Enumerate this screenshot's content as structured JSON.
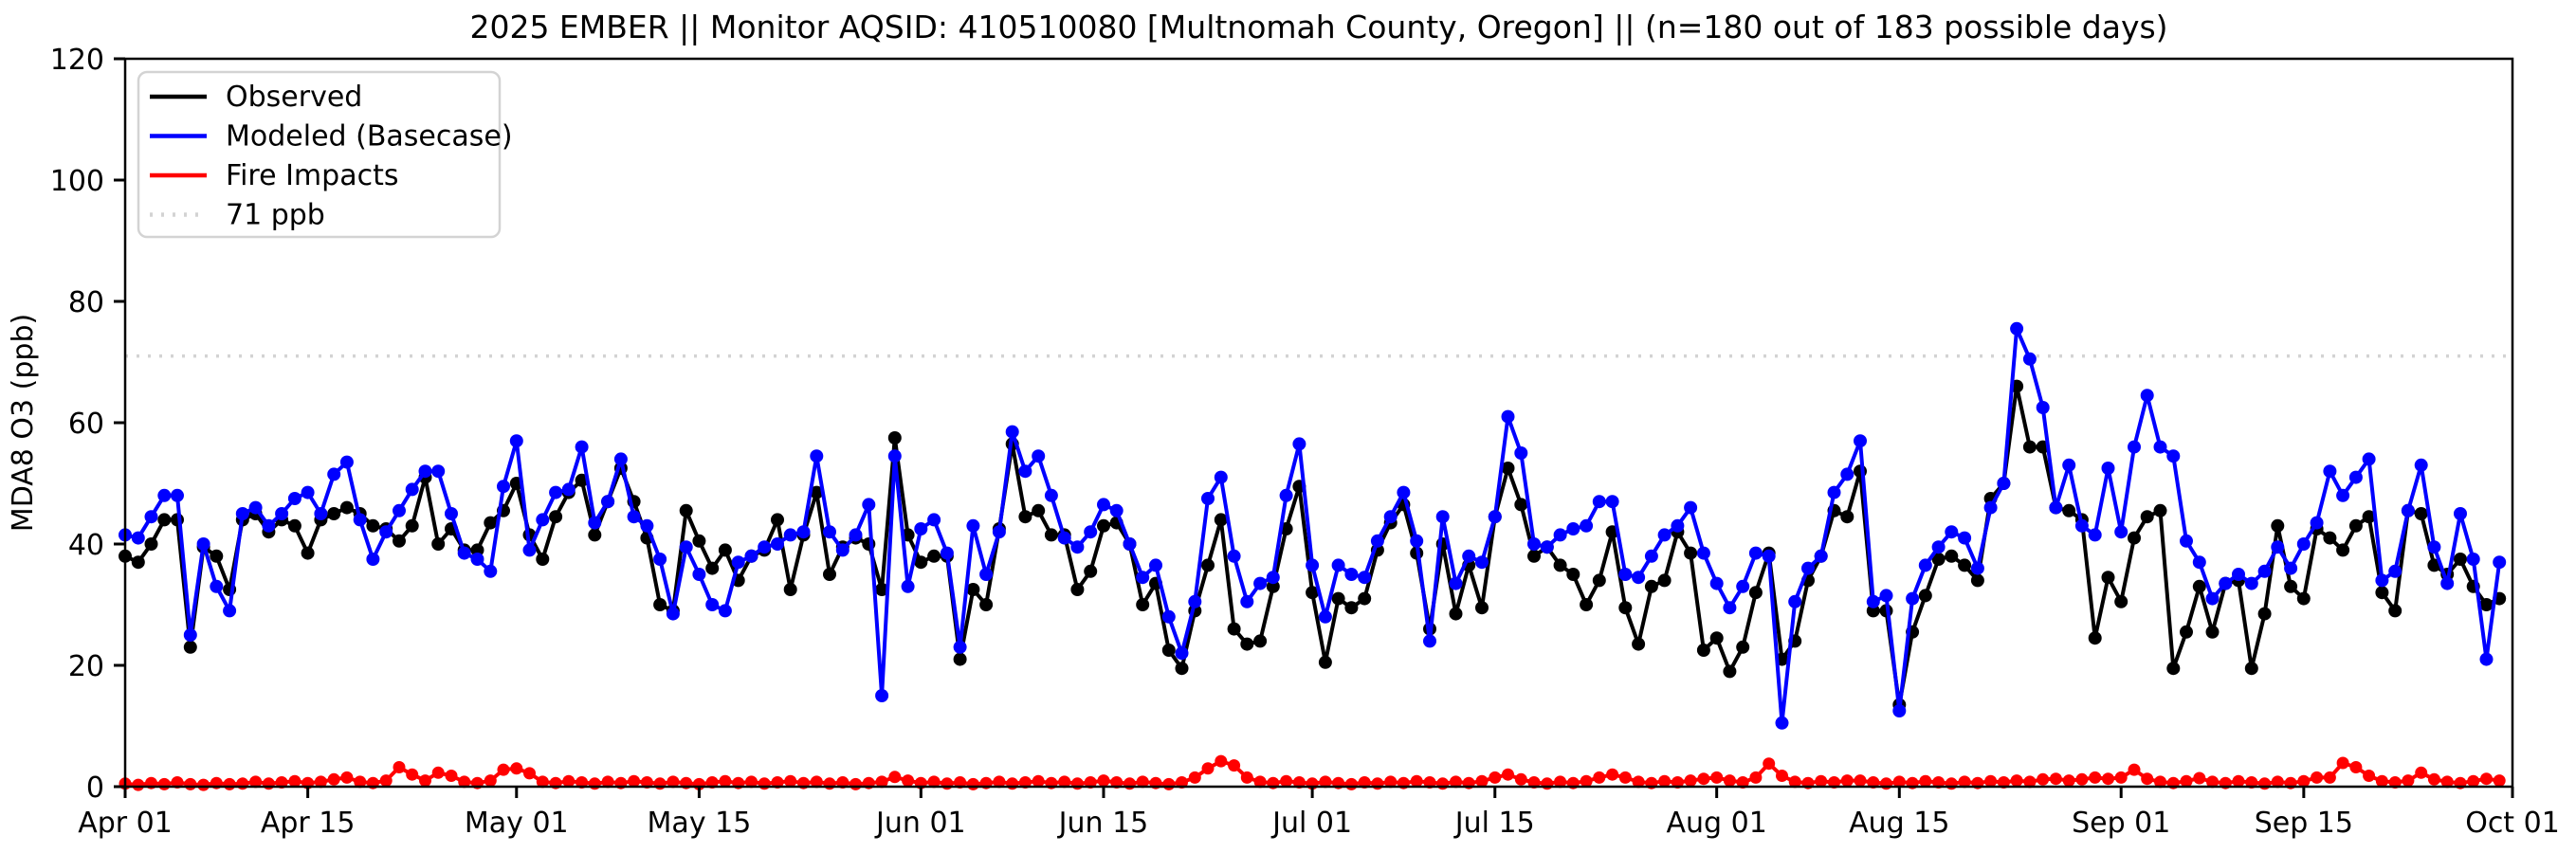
{
  "figure": {
    "background": "#ffffff",
    "accent_black": "#000000",
    "accent_blue": "#0000ff",
    "accent_red": "#ff0000",
    "threshold_gray": "#d3d3d3"
  },
  "chart_data": {
    "type": "line",
    "title": "2025 EMBER || Monitor AQSID: 410510080 [Multnomah County, Oregon] || (n=180 out of 183 possible days)",
    "xlabel": "",
    "ylabel": "MDA8 O3 (ppb)",
    "ylim": [
      0,
      120
    ],
    "y_ticks": [
      0,
      20,
      40,
      60,
      80,
      100,
      120
    ],
    "x_axis_note": "daily values, day 0 = Apr 01, day 182 = Sep 30, axis extends to Oct 01 (day 183)",
    "x_range_days": 183,
    "x_tick_days": [
      0,
      14,
      30,
      44,
      61,
      75,
      91,
      105,
      122,
      136,
      153,
      167,
      183
    ],
    "x_tick_labels": [
      "Apr 01",
      "Apr 15",
      "May 01",
      "May 15",
      "Jun 01",
      "Jun 15",
      "Jul 01",
      "Jul 15",
      "Aug 01",
      "Aug 15",
      "Sep 01",
      "Sep 15",
      "Oct 01"
    ],
    "grid": false,
    "legend_position": "upper left",
    "threshold": {
      "value": 71,
      "label": "71 ppb",
      "color": "#d3d3d3",
      "style": "dotted"
    },
    "series": [
      {
        "name": "Observed",
        "color": "#000000",
        "style": "solid",
        "marker": "circle",
        "values": [
          38,
          37,
          40,
          44,
          44,
          23,
          39.5,
          38,
          32.5,
          44,
          45,
          42,
          44,
          43,
          38.5,
          44,
          45,
          46,
          45,
          43,
          42.5,
          40.5,
          43,
          51,
          40,
          42.5,
          39,
          39,
          43.5,
          45.5,
          50,
          41.5,
          37.5,
          44.5,
          48.5,
          50.5,
          41.5,
          47,
          52.5,
          47,
          41,
          30,
          29,
          45.5,
          40.5,
          36,
          39,
          34,
          38,
          39,
          44,
          32.5,
          41.5,
          48.5,
          35,
          39.5,
          41,
          40,
          32.5,
          57.5,
          41.5,
          37,
          38,
          38,
          21,
          32.5,
          30,
          42.5,
          56.5,
          44.5,
          45.5,
          41.5,
          41.5,
          32.5,
          35.5,
          43,
          43.5,
          40,
          30,
          33.5,
          22.5,
          19.5,
          29,
          36.5,
          44,
          26,
          23.5,
          24,
          33,
          42.5,
          49.5,
          32,
          20.5,
          31,
          29.5,
          31,
          39,
          43.5,
          46.5,
          38.5,
          26,
          40,
          28.5,
          36.5,
          29.5,
          44.5,
          52.5,
          46.5,
          38,
          39.5,
          36.5,
          35,
          30,
          34,
          42,
          29.5,
          23.5,
          33,
          34,
          42,
          38.5,
          22.5,
          24.5,
          19,
          23,
          32,
          38.5,
          21,
          24,
          34,
          38,
          45.5,
          44.5,
          52,
          29,
          29,
          13.5,
          25.5,
          31.5,
          37.5,
          38,
          36.5,
          34,
          47.5,
          50,
          66,
          56,
          56,
          46,
          45.5,
          44,
          24.5,
          34.5,
          30.5,
          41,
          44.5,
          45.5,
          19.5,
          25.5,
          33,
          25.5,
          33.5,
          34,
          19.5,
          28.5,
          43,
          33,
          31,
          42.5,
          41,
          39,
          43,
          44.5,
          32,
          29,
          45.5,
          45,
          36.5,
          35,
          37.5,
          33,
          30,
          31
        ]
      },
      {
        "name": "Modeled (Basecase)",
        "color": "#0000ff",
        "style": "solid",
        "marker": "circle",
        "values": [
          41.5,
          41,
          44.5,
          48,
          48,
          25,
          40,
          33,
          29,
          45,
          46,
          43,
          45,
          47.5,
          48.5,
          45,
          51.5,
          53.5,
          44,
          37.5,
          42,
          45.5,
          49,
          52,
          52,
          45,
          38.5,
          37.5,
          35.5,
          49.5,
          57,
          39,
          44,
          48.5,
          49,
          56,
          43.5,
          47,
          54,
          44.5,
          43,
          37.5,
          28.5,
          39.5,
          35,
          30,
          29,
          37,
          38,
          39.5,
          40,
          41.5,
          42,
          54.5,
          42,
          39,
          41.5,
          46.5,
          15,
          54.5,
          33,
          42.5,
          44,
          38.5,
          23,
          43,
          35,
          42,
          58.5,
          52,
          54.5,
          48,
          41,
          39.5,
          42,
          46.5,
          45.5,
          40,
          34.5,
          36.5,
          28,
          22,
          30.5,
          47.5,
          51,
          38,
          30.5,
          33.5,
          34.5,
          48,
          56.5,
          36.5,
          28,
          36.5,
          35,
          34.5,
          40.5,
          44.5,
          48.5,
          40.5,
          24,
          44.5,
          33.5,
          38,
          37,
          44.5,
          61,
          55,
          40,
          39.5,
          41.5,
          42.5,
          43,
          47,
          47,
          35,
          34.5,
          38,
          41.5,
          43,
          46,
          38.5,
          33.5,
          29.5,
          33,
          38.5,
          38,
          10.5,
          30.5,
          36,
          38,
          48.5,
          51.5,
          57,
          30.5,
          31.5,
          12.5,
          31,
          36.5,
          39.5,
          42,
          41,
          36,
          46,
          50,
          75.5,
          70.5,
          62.5,
          46,
          53,
          43,
          41.5,
          52.5,
          42,
          56,
          64.5,
          56,
          54.5,
          40.5,
          37,
          31,
          33.5,
          35,
          33.5,
          35.5,
          39.5,
          36,
          40,
          43.5,
          52,
          48,
          51,
          54,
          34,
          35.5,
          45.5,
          53,
          39.5,
          33.5,
          45,
          37.5,
          21,
          37
        ]
      },
      {
        "name": "Fire Impacts",
        "color": "#ff0000",
        "style": "solid",
        "marker": "circle",
        "values": [
          0.5,
          0.3,
          0.6,
          0.4,
          0.7,
          0.4,
          0.3,
          0.6,
          0.4,
          0.5,
          0.8,
          0.5,
          0.7,
          0.9,
          0.6,
          0.8,
          1.2,
          1.5,
          0.8,
          0.6,
          1.0,
          3.2,
          2.0,
          1.0,
          2.3,
          1.8,
          0.8,
          0.6,
          1.0,
          2.8,
          3.0,
          2.2,
          0.8,
          0.6,
          0.9,
          0.7,
          0.5,
          0.8,
          0.6,
          0.9,
          0.7,
          0.5,
          0.8,
          0.6,
          0.4,
          0.7,
          0.9,
          0.6,
          0.8,
          0.5,
          0.7,
          0.9,
          0.6,
          0.8,
          0.5,
          0.7,
          0.4,
          0.6,
          0.8,
          1.6,
          1.0,
          0.6,
          0.8,
          0.5,
          0.7,
          0.4,
          0.6,
          0.8,
          0.5,
          0.7,
          0.9,
          0.6,
          0.8,
          0.5,
          0.7,
          1.0,
          0.7,
          0.5,
          0.8,
          0.6,
          0.4,
          0.7,
          1.5,
          3.0,
          4.2,
          3.5,
          1.5,
          0.8,
          0.6,
          0.9,
          0.7,
          0.5,
          0.8,
          0.6,
          0.4,
          0.7,
          0.5,
          0.8,
          0.6,
          0.9,
          0.7,
          0.5,
          0.8,
          0.6,
          0.9,
          1.5,
          2.0,
          1.2,
          0.7,
          0.5,
          0.8,
          0.6,
          0.9,
          1.5,
          2.0,
          1.5,
          0.8,
          0.6,
          0.9,
          0.7,
          1.0,
          1.3,
          1.5,
          1.0,
          0.7,
          1.5,
          3.8,
          1.8,
          0.8,
          0.6,
          0.9,
          0.7,
          1.0,
          1.0,
          0.7,
          0.5,
          0.8,
          0.6,
          0.9,
          0.7,
          0.5,
          0.8,
          0.6,
          0.9,
          0.7,
          1.0,
          0.8,
          1.2,
          1.3,
          1.0,
          1.2,
          1.5,
          1.3,
          1.5,
          2.8,
          1.3,
          0.8,
          0.6,
          0.9,
          1.4,
          0.8,
          0.6,
          0.9,
          0.7,
          0.5,
          0.8,
          0.6,
          0.9,
          1.5,
          1.5,
          3.9,
          3.2,
          1.8,
          0.9,
          0.7,
          1.0,
          2.3,
          1.2,
          0.8,
          0.6,
          0.9,
          1.3,
          1.0
        ]
      }
    ],
    "legend_entries": [
      "Observed",
      "Modeled (Basecase)",
      "Fire Impacts",
      "71 ppb"
    ]
  }
}
